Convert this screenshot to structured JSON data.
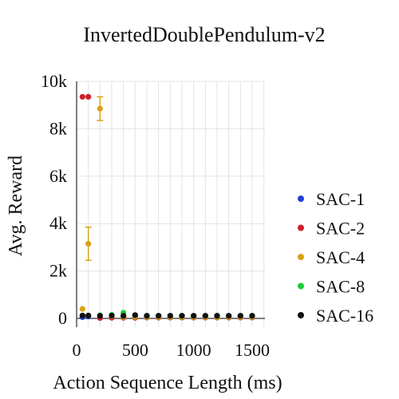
{
  "chart_data": {
    "type": "scatter",
    "title": "InvertedDoublePendulum-v2",
    "xlabel": "Action Sequence Length (ms)",
    "ylabel": "Avg. Reward",
    "xlim": [
      0,
      1600
    ],
    "ylim": [
      -300,
      10000
    ],
    "x_ticks": [
      0,
      500,
      1000,
      1500
    ],
    "x_tick_labels": [
      "0",
      "500",
      "1000",
      "1500"
    ],
    "y_ticks": [
      0,
      2000,
      4000,
      6000,
      8000,
      10000
    ],
    "y_tick_labels": [
      "0",
      "2k",
      "4k",
      "6k",
      "8k",
      "10k"
    ],
    "grid": true,
    "legend_position": "right",
    "series": [
      {
        "name": "SAC-1",
        "color": "#1f3fd6",
        "points": [
          {
            "x": 50,
            "y": 50
          },
          {
            "x": 100,
            "y": 80
          },
          {
            "x": 200,
            "y": 20
          },
          {
            "x": 300,
            "y": 30
          },
          {
            "x": 400,
            "y": 30
          },
          {
            "x": 500,
            "y": 30
          },
          {
            "x": 600,
            "y": 40
          },
          {
            "x": 700,
            "y": 40
          },
          {
            "x": 800,
            "y": 40
          },
          {
            "x": 900,
            "y": 40
          },
          {
            "x": 1000,
            "y": 40
          },
          {
            "x": 1100,
            "y": 40
          },
          {
            "x": 1200,
            "y": 40
          },
          {
            "x": 1300,
            "y": 40
          },
          {
            "x": 1400,
            "y": 40
          },
          {
            "x": 1500,
            "y": 40
          }
        ]
      },
      {
        "name": "SAC-2",
        "color": "#d0202a",
        "points": [
          {
            "x": 50,
            "y": 9350
          },
          {
            "x": 100,
            "y": 9350
          },
          {
            "x": 200,
            "y": 20
          },
          {
            "x": 300,
            "y": 30
          },
          {
            "x": 400,
            "y": 30
          },
          {
            "x": 500,
            "y": 30
          },
          {
            "x": 600,
            "y": 40
          },
          {
            "x": 700,
            "y": 40
          },
          {
            "x": 800,
            "y": 40
          },
          {
            "x": 900,
            "y": 40
          },
          {
            "x": 1000,
            "y": 40
          },
          {
            "x": 1100,
            "y": 40
          },
          {
            "x": 1200,
            "y": 40
          },
          {
            "x": 1300,
            "y": 40
          },
          {
            "x": 1400,
            "y": 40
          },
          {
            "x": 1500,
            "y": 40
          }
        ]
      },
      {
        "name": "SAC-4",
        "color": "#d9a216",
        "points": [
          {
            "x": 50,
            "y": 400
          },
          {
            "x": 100,
            "y": 3150,
            "err": 700
          },
          {
            "x": 200,
            "y": 8850,
            "err": 500
          },
          {
            "x": 300,
            "y": 100
          },
          {
            "x": 400,
            "y": 60
          },
          {
            "x": 500,
            "y": 60
          },
          {
            "x": 600,
            "y": 60
          },
          {
            "x": 700,
            "y": 60
          },
          {
            "x": 800,
            "y": 60
          },
          {
            "x": 900,
            "y": 60
          },
          {
            "x": 1000,
            "y": 60
          },
          {
            "x": 1100,
            "y": 60
          },
          {
            "x": 1200,
            "y": 60
          },
          {
            "x": 1300,
            "y": 60
          },
          {
            "x": 1400,
            "y": 60
          },
          {
            "x": 1500,
            "y": 60
          }
        ]
      },
      {
        "name": "SAC-8",
        "color": "#1fcc3a",
        "points": [
          {
            "x": 50,
            "y": 120
          },
          {
            "x": 100,
            "y": 120
          },
          {
            "x": 200,
            "y": 130
          },
          {
            "x": 300,
            "y": 150
          },
          {
            "x": 400,
            "y": 240
          },
          {
            "x": 500,
            "y": 130
          },
          {
            "x": 600,
            "y": 110
          },
          {
            "x": 700,
            "y": 110
          },
          {
            "x": 800,
            "y": 110
          },
          {
            "x": 900,
            "y": 110
          },
          {
            "x": 1000,
            "y": 110
          },
          {
            "x": 1100,
            "y": 110
          },
          {
            "x": 1200,
            "y": 110
          },
          {
            "x": 1300,
            "y": 110
          },
          {
            "x": 1400,
            "y": 110
          },
          {
            "x": 1500,
            "y": 110
          }
        ]
      },
      {
        "name": "SAC-16",
        "color": "#111111",
        "points": [
          {
            "x": 50,
            "y": 120
          },
          {
            "x": 100,
            "y": 120
          },
          {
            "x": 200,
            "y": 110
          },
          {
            "x": 300,
            "y": 120
          },
          {
            "x": 400,
            "y": 110
          },
          {
            "x": 500,
            "y": 140
          },
          {
            "x": 600,
            "y": 110
          },
          {
            "x": 700,
            "y": 110
          },
          {
            "x": 800,
            "y": 110
          },
          {
            "x": 900,
            "y": 110
          },
          {
            "x": 1000,
            "y": 110
          },
          {
            "x": 1100,
            "y": 110
          },
          {
            "x": 1200,
            "y": 110
          },
          {
            "x": 1300,
            "y": 110
          },
          {
            "x": 1400,
            "y": 110
          },
          {
            "x": 1500,
            "y": 110
          }
        ]
      }
    ]
  }
}
